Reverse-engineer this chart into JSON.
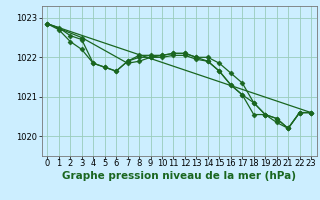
{
  "background_color": "#cceeff",
  "plot_bg_color": "#cceeff",
  "grid_color": "#99ccbb",
  "line_color": "#1a6620",
  "marker_color": "#1a6620",
  "xlabel": "Graphe pression niveau de la mer (hPa)",
  "ylim": [
    1019.5,
    1023.3
  ],
  "xlim": [
    -0.5,
    23.5
  ],
  "yticks": [
    1020,
    1021,
    1022,
    1023
  ],
  "xticks": [
    0,
    1,
    2,
    3,
    4,
    5,
    6,
    7,
    8,
    9,
    10,
    11,
    12,
    13,
    14,
    15,
    16,
    17,
    18,
    19,
    20,
    21,
    22,
    23
  ],
  "series": [
    {
      "x": [
        0,
        1,
        2,
        3,
        4,
        5,
        6,
        7,
        8,
        9,
        10,
        11,
        12,
        13,
        14,
        15,
        16,
        17,
        18,
        19,
        20,
        21,
        22,
        23
      ],
      "y": [
        1022.85,
        1022.75,
        1022.55,
        1022.45,
        1021.85,
        1021.75,
        1021.65,
        1021.9,
        1022.05,
        1022.05,
        1022.05,
        1022.1,
        1022.1,
        1022.0,
        1022.0,
        1021.85,
        1021.6,
        1021.35,
        1020.85,
        1020.55,
        1020.45,
        1020.2,
        1020.6,
        1020.6
      ],
      "marker": "D",
      "markersize": 2.5,
      "linewidth": 0.9
    },
    {
      "x": [
        0,
        1,
        2,
        3,
        4,
        5,
        6,
        7,
        8,
        9,
        10,
        11,
        12,
        13,
        14,
        15,
        16,
        17,
        18,
        19,
        20,
        21,
        22,
        23
      ],
      "y": [
        1022.85,
        1022.7,
        1022.4,
        1022.2,
        1021.85,
        1021.75,
        1021.65,
        1021.9,
        1022.0,
        1022.0,
        1022.0,
        1022.05,
        1022.05,
        1021.95,
        1021.9,
        1021.65,
        1021.3,
        1021.05,
        1020.85,
        1020.55,
        1020.45,
        1020.2,
        1020.6,
        1020.6
      ],
      "marker": "D",
      "markersize": 2.5,
      "linewidth": 0.9
    },
    {
      "x": [
        0,
        23
      ],
      "y": [
        1022.85,
        1020.6
      ],
      "marker": null,
      "markersize": 0,
      "linewidth": 0.9
    },
    {
      "x": [
        0,
        3,
        7,
        8,
        9,
        10,
        11,
        12,
        13,
        14,
        15,
        16,
        17,
        18,
        19,
        20,
        21,
        22,
        23
      ],
      "y": [
        1022.85,
        1022.5,
        1021.85,
        1021.9,
        1022.0,
        1022.05,
        1022.1,
        1022.1,
        1022.0,
        1021.9,
        1021.65,
        1021.3,
        1021.05,
        1020.55,
        1020.55,
        1020.35,
        1020.2,
        1020.6,
        1020.6
      ],
      "marker": "D",
      "markersize": 2.5,
      "linewidth": 0.9
    }
  ],
  "tick_fontsize": 6,
  "label_fontsize": 7.5,
  "label_fontweight": "bold"
}
